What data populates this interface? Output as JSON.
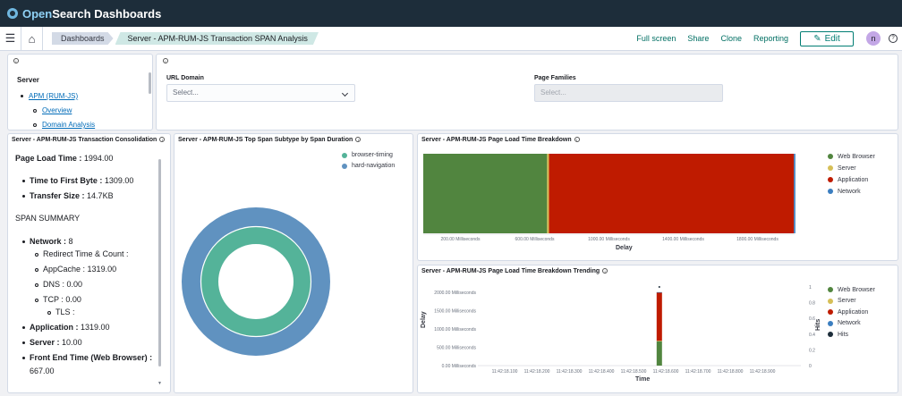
{
  "app": {
    "title": "OpenSearch Dashboards",
    "brand_a": "Open",
    "brand_b": "Search Dashboards"
  },
  "nav": {
    "breadcrumbs": [
      "Dashboards",
      "Server - APM-RUM-JS Transaction SPAN Analysis"
    ],
    "actions": [
      "Full screen",
      "Share",
      "Clone",
      "Reporting"
    ],
    "edit_label": "Edit",
    "avatar_initial": "n",
    "help_glyph": "?"
  },
  "panel_nav": {
    "section": "Server",
    "item": "APM (RUM-JS)",
    "subitems": [
      "Overview",
      "Domain Analysis"
    ]
  },
  "panel_filters": {
    "url_domain_label": "URL Domain",
    "url_domain_placeholder": "Select...",
    "page_families_label": "Page Families",
    "page_families_placeholder": "Select..."
  },
  "consolidation": {
    "title": "Server - APM-RUM-JS Transaction Consolidation",
    "page_load_label": "Page Load Time :",
    "page_load_value": "1994.00",
    "ttfb_label": "Time to First Byte :",
    "ttfb_value": "1309.00",
    "transfer_label": "Transfer Size :",
    "transfer_value": "14.7KB",
    "span_summary": "SPAN SUMMARY",
    "network_label": "Network :",
    "network_value": "8",
    "redirect_label": "Redirect Time & Count :",
    "appcache_label": "AppCache :",
    "appcache_value": "1319.00",
    "dns_label": "DNS :",
    "dns_value": "0.00",
    "tcp_label": "TCP :",
    "tcp_value": "0.00",
    "tls_label": "TLS :",
    "application_label": "Application :",
    "application_value": "1319.00",
    "server_label": "Server :",
    "server_value": "10.00",
    "frontend_label": "Front End Time (Web Browser) :",
    "frontend_value": "667.00"
  },
  "colors": {
    "browser_timing": "#54b399",
    "hard_navigation": "#6092c0",
    "web_browser": "#51853f",
    "server": "#d6bf57",
    "application": "#bf1b00",
    "network": "#3b7ec0",
    "hits": "#1d2d3a"
  },
  "chart_data": [
    {
      "type": "pie",
      "title": "Server - APM-RUM-JS Top Span Subtype by Span Duration",
      "legend_position": "top-right",
      "rings": [
        {
          "name": "hard-navigation",
          "slices": [
            {
              "label": "hard-navigation",
              "value": 100
            }
          ]
        },
        {
          "name": "browser-timing",
          "slices": [
            {
              "label": "browser-timing",
              "value": 100
            }
          ]
        }
      ],
      "legend": [
        "browser-timing",
        "hard-navigation"
      ]
    },
    {
      "type": "bar",
      "orientation": "horizontal",
      "stacked": true,
      "title": "Server - APM-RUM-JS Page Load Time Breakdown",
      "xlabel": "Delay",
      "xlim": [
        0,
        2000
      ],
      "x_ticks": [
        200,
        600,
        1000,
        1400,
        1800
      ],
      "x_tick_labels": [
        "200.00 Milliseconds",
        "600.00 Milliseconds",
        "1000.00 Milliseconds",
        "1400.00 Milliseconds",
        "1800.00 Milliseconds"
      ],
      "legend_position": "right",
      "series": [
        {
          "name": "Web Browser",
          "values": [
            667
          ]
        },
        {
          "name": "Server",
          "values": [
            10
          ]
        },
        {
          "name": "Application",
          "values": [
            1319
          ]
        },
        {
          "name": "Network",
          "values": [
            8
          ]
        }
      ]
    },
    {
      "type": "bar",
      "stacked": true,
      "title": "Server - APM-RUM-JS Page Load Time Breakdown Trending",
      "xlabel": "Time",
      "ylabel": "Delay",
      "y2label": "Hits",
      "ylim": [
        0,
        2000
      ],
      "y_ticks": [
        0,
        500,
        1000,
        1500,
        2000
      ],
      "y_tick_labels": [
        "0.00 Milliseconds",
        "500.00 Milliseconds",
        "1000.00 Milliseconds",
        "1500.00 Milliseconds",
        "2000.00 Milliseconds"
      ],
      "y2lim": [
        0,
        1
      ],
      "y2_ticks": [
        0,
        0.2,
        0.4,
        0.6,
        0.8,
        1
      ],
      "y2_tick_labels": [
        "0",
        "0.2",
        "0.4",
        "0.6",
        "0.8",
        "1"
      ],
      "x_tick_labels": [
        "11:42:18.100",
        "11:42:18.200",
        "11:42:18.300",
        "11:42:18.400",
        "11:42:18.500",
        "11:42:18.600",
        "11:42:18.700",
        "11:42:18.800",
        "11:42:18.900"
      ],
      "bar_at": "11:42:18.580",
      "legend_position": "right",
      "series": [
        {
          "name": "Web Browser",
          "values": [
            667
          ]
        },
        {
          "name": "Server",
          "values": [
            10
          ]
        },
        {
          "name": "Application",
          "values": [
            1319
          ]
        },
        {
          "name": "Network",
          "values": [
            8
          ]
        },
        {
          "name": "Hits",
          "values": [
            1
          ]
        }
      ]
    }
  ]
}
